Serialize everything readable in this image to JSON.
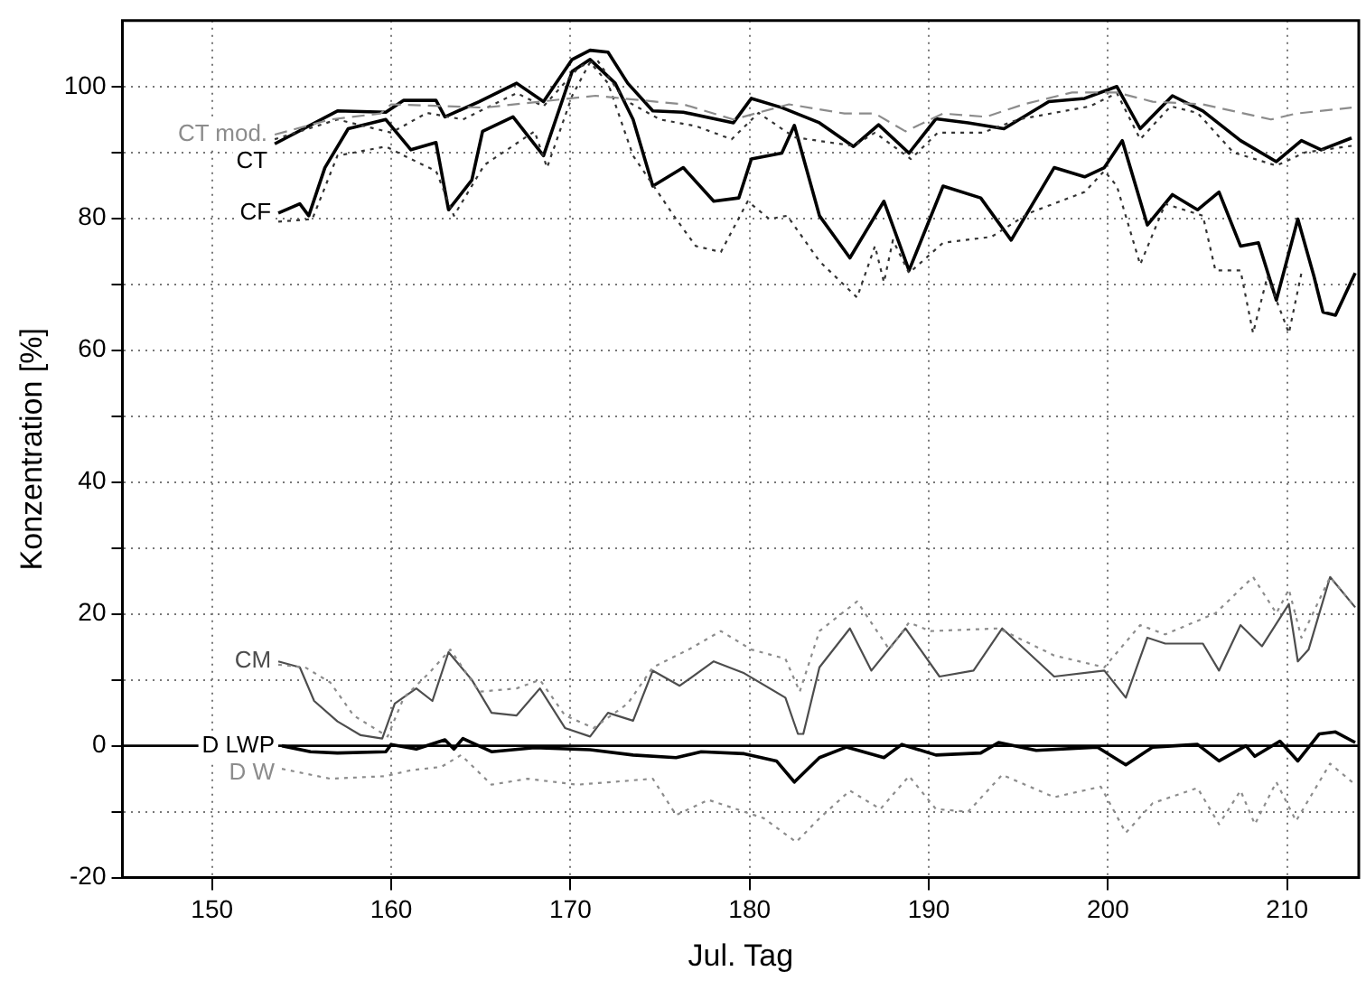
{
  "chart_data": {
    "type": "line",
    "xlabel": "Jul. Tag",
    "ylabel": "Konzentration [%]",
    "xlim": [
      145,
      214
    ],
    "ylim": [
      -20,
      110
    ],
    "xticks": [
      150,
      160,
      170,
      180,
      190,
      200,
      210
    ],
    "yticks": [
      -20,
      {
        "value": -10,
        "label": null
      },
      0,
      {
        "value": 10,
        "label": null
      },
      20,
      {
        "value": 30,
        "label": null
      },
      40,
      {
        "value": 50,
        "label": null
      },
      60,
      {
        "value": 70,
        "label": null
      },
      80,
      {
        "value": 90,
        "label": null
      },
      100
    ],
    "grid": true,
    "ref_lines": [
      {
        "axis": "y",
        "value": 0,
        "color": "#000000",
        "line_style": "solid"
      }
    ],
    "series": [
      {
        "name": "CT mod.",
        "color": "#8c8c8c",
        "line_style": "dashed",
        "x": [
          153.5,
          156.6,
          159.4,
          160,
          165.2,
          171.4,
          176.3,
          179.1,
          182.2,
          185.3,
          187,
          188.7,
          190.8,
          193.2,
          195.3,
          198,
          200.5,
          202.5,
          205.3,
          209.1,
          210.5,
          213.6
        ],
        "values": [
          92.7,
          95,
          95.9,
          97.3,
          96.8,
          98.6,
          97.3,
          95,
          97.3,
          95.9,
          95.9,
          93.2,
          95.9,
          95.4,
          97.3,
          99.1,
          99.1,
          97.7,
          97.3,
          95,
          95.9,
          96.8
        ]
      },
      {
        "color": "#333333",
        "line_style": "dotted",
        "x": [
          153.5,
          157,
          160,
          162,
          164,
          167,
          168.5,
          170.5,
          171.5,
          173,
          175,
          177,
          179,
          180.5,
          182.5,
          185.8,
          187,
          189,
          190.5,
          193,
          195,
          197,
          199,
          200.5,
          201.8,
          203.5,
          205,
          207,
          209.4,
          211,
          213.6
        ],
        "values": [
          92,
          95,
          93,
          96,
          95,
          99,
          97,
          103,
          104,
          98,
          95,
          94,
          92,
          96,
          92.3,
          91,
          93,
          89,
          93,
          93,
          95,
          96,
          97,
          99,
          92,
          97,
          96,
          90,
          88,
          90,
          91
        ]
      },
      {
        "name": "CT",
        "color": "#000000",
        "line_style": "solid",
        "x": [
          153.5,
          157,
          159.7,
          160.7,
          162.5,
          163,
          164.9,
          167,
          168.5,
          170.1,
          171.1,
          172.1,
          173.2,
          174.6,
          176.3,
          179.1,
          180.1,
          181.8,
          183.9,
          185.8,
          187.2,
          188.9,
          190.4,
          192.2,
          194.2,
          196.7,
          198.7,
          200.5,
          201.8,
          203.6,
          205.3,
          207.4,
          209.4,
          210.8,
          211.9,
          213.6
        ],
        "values": [
          91.3,
          96.3,
          96.1,
          97.9,
          97.9,
          95.4,
          97.7,
          100.5,
          97.7,
          104.1,
          105.5,
          105.2,
          100.5,
          96.3,
          96.1,
          94.5,
          98.2,
          96.8,
          94.5,
          90.9,
          94.2,
          89.9,
          95.1,
          94.5,
          93.6,
          97.7,
          98.2,
          100,
          93.6,
          98.6,
          96.3,
          91.8,
          88.6,
          91.8,
          90.4,
          92.2
        ]
      },
      {
        "color": "#333333",
        "line_style": "dotted",
        "x": [
          153.7,
          155.6,
          157,
          159.7,
          161.4,
          162.5,
          163.5,
          165.2,
          168,
          168.7,
          170.1,
          171.1,
          172.1,
          173.5,
          174.9,
          175.9,
          177,
          178.4,
          179.9,
          181.1,
          182.1,
          182.7,
          183.9,
          186,
          187,
          187.5,
          188,
          188.9,
          190.8,
          193.5,
          195.6,
          198.7,
          199.8,
          200.5,
          201.8,
          203.2,
          205.3,
          206,
          207.4,
          208.1,
          208.9,
          210.1,
          210.8
        ],
        "values": [
          79.5,
          79.9,
          89.5,
          90.9,
          88.6,
          87.2,
          80.4,
          88.1,
          93.2,
          87.7,
          98.6,
          103.7,
          100.5,
          89.5,
          83.9,
          79.9,
          75.8,
          74.9,
          82.6,
          79.9,
          80.4,
          78.1,
          73.5,
          68,
          75.8,
          70.3,
          76.7,
          71.7,
          76.3,
          77.2,
          80.8,
          84,
          87.2,
          84.9,
          73,
          82.2,
          80.4,
          72.1,
          72.1,
          62.6,
          71.2,
          62.6,
          71.7
        ]
      },
      {
        "name": "CF",
        "color": "#000000",
        "line_style": "solid",
        "x": [
          153.7,
          154.9,
          155.4,
          156.3,
          157.6,
          159.7,
          161.1,
          162.5,
          163.2,
          164.5,
          165.1,
          166.8,
          168.5,
          170.1,
          171.1,
          172.5,
          173.5,
          174.6,
          176.3,
          178,
          179.4,
          180.1,
          181.8,
          182.5,
          183.9,
          185.6,
          187.5,
          188.9,
          190.8,
          192.9,
          194.6,
          197,
          198.7,
          199.8,
          200.8,
          202.2,
          203.6,
          205,
          206.2,
          207.4,
          208.4,
          209.4,
          210.6,
          211.5,
          212,
          212.7,
          213.8
        ],
        "values": [
          80.8,
          82.2,
          80.4,
          87.7,
          93.6,
          95,
          90.4,
          91.5,
          81.3,
          85.8,
          93.2,
          95.4,
          89.5,
          102.3,
          104.1,
          100.5,
          95,
          84.9,
          87.7,
          82.6,
          83.1,
          89,
          89.9,
          94.1,
          80.4,
          74,
          82.6,
          72.1,
          84.9,
          83.1,
          76.7,
          87.7,
          86.3,
          87.7,
          91.8,
          79,
          83.6,
          81.3,
          84,
          75.8,
          76.3,
          67.6,
          79.9,
          71.2,
          65.8,
          65.3,
          71.7
        ]
      },
      {
        "color": "#8c8c8c",
        "line_style": "dotted",
        "x": [
          153.7,
          155.2,
          156.6,
          157.9,
          159.8,
          160.7,
          162.1,
          163.3,
          164.9,
          167,
          168.3,
          169.7,
          171.3,
          173.2,
          174.6,
          176.6,
          178.4,
          180.1,
          182,
          182.8,
          183.9,
          186,
          187.8,
          188.9,
          190.1,
          193.9,
          197,
          199.8,
          201.8,
          203.2,
          206,
          208.1,
          209.4,
          210.1,
          210.8,
          212.4,
          213.8
        ],
        "values": [
          12.3,
          11.9,
          9.6,
          4.6,
          1.4,
          7.3,
          11,
          14.6,
          8.2,
          8.7,
          10,
          4.6,
          2.7,
          6.4,
          11.9,
          14.6,
          17.4,
          14.6,
          13.2,
          8.2,
          17.4,
          21.9,
          14.6,
          18.7,
          17.4,
          17.8,
          13.7,
          11.9,
          18.3,
          16.9,
          20.1,
          25.6,
          20.1,
          23.7,
          16.4,
          25.6,
          21
        ]
      },
      {
        "name": "CM",
        "color": "#4d4d4d",
        "line_style": "solid",
        "x": [
          153.7,
          154.9,
          155.7,
          157,
          158.3,
          159.5,
          160.2,
          161.4,
          162.3,
          163.2,
          164.5,
          165.6,
          167,
          168.3,
          169.7,
          171.1,
          172.1,
          173.5,
          174.6,
          176.1,
          178,
          179.7,
          182,
          182.7,
          183,
          183.9,
          185.6,
          186.8,
          188.7,
          190.6,
          192.5,
          194.1,
          197,
          199.8,
          201,
          202.2,
          203.2,
          205.3,
          206.2,
          207.4,
          208.6,
          210.1,
          210.6,
          211.2,
          212.4,
          213.8
        ],
        "values": [
          12.8,
          11.9,
          6.8,
          3.7,
          1.6,
          1.1,
          6.4,
          8.7,
          6.8,
          14.2,
          10,
          5,
          4.6,
          8.7,
          2.7,
          1.4,
          5,
          3.8,
          11.4,
          9.1,
          12.8,
          11,
          7.3,
          1.8,
          1.8,
          11.9,
          17.8,
          11.4,
          17.8,
          10.5,
          11.4,
          17.8,
          10.5,
          11.4,
          7.3,
          16.4,
          15.5,
          15.5,
          11.4,
          18.3,
          15.1,
          21.5,
          12.8,
          14.6,
          25.6,
          21
        ]
      },
      {
        "name": "D LWP",
        "color": "#000000",
        "line_style": "solid",
        "x": [
          153.9,
          155.5,
          157,
          159.7,
          160,
          161.4,
          163,
          163.5,
          164,
          165.6,
          168,
          171.1,
          173.5,
          175.9,
          177.3,
          179.7,
          181.5,
          182.5,
          183.9,
          185.4,
          187.5,
          188.5,
          190.4,
          192.9,
          193.9,
          196,
          199.4,
          201,
          202.5,
          205,
          206.2,
          207.7,
          208.2,
          209.6,
          210.6,
          211.8,
          212.7,
          213.8
        ],
        "values": [
          0,
          -0.9,
          -1.1,
          -0.9,
          0.2,
          -0.5,
          0.9,
          -0.5,
          1.1,
          -0.9,
          -0.3,
          -0.6,
          -1.4,
          -1.8,
          -0.9,
          -1.2,
          -2.3,
          -5.5,
          -1.8,
          -0.2,
          -1.8,
          0.2,
          -1.4,
          -1.1,
          0.5,
          -0.7,
          -0.2,
          -2.9,
          -0.2,
          0.2,
          -2.3,
          0,
          -1.6,
          0.7,
          -2.3,
          1.8,
          2.1,
          0.5
        ]
      },
      {
        "name": "D W",
        "color": "#8c8c8c",
        "line_style": "dotted",
        "x": [
          153.9,
          156.6,
          159.7,
          161.1,
          162.8,
          163.9,
          165.6,
          167.6,
          170.4,
          174.6,
          175.9,
          177.7,
          180.8,
          182.6,
          183.9,
          185.6,
          187.3,
          188.9,
          190.4,
          192.2,
          194.1,
          197,
          199.6,
          201,
          202.5,
          205,
          206.2,
          207.4,
          208.2,
          209.4,
          210.5,
          212.4,
          213.8
        ],
        "values": [
          -3.5,
          -5,
          -4.6,
          -3.7,
          -3.2,
          -1.4,
          -5.9,
          -5,
          -5.9,
          -5,
          -10.5,
          -8.2,
          -11,
          -14.6,
          -11,
          -6.8,
          -9.6,
          -4.6,
          -9.6,
          -10,
          -4.4,
          -7.8,
          -6.2,
          -13.2,
          -8.7,
          -6.4,
          -11.9,
          -6.8,
          -11.9,
          -5.5,
          -11.4,
          -2.7,
          -5.9
        ]
      }
    ]
  }
}
